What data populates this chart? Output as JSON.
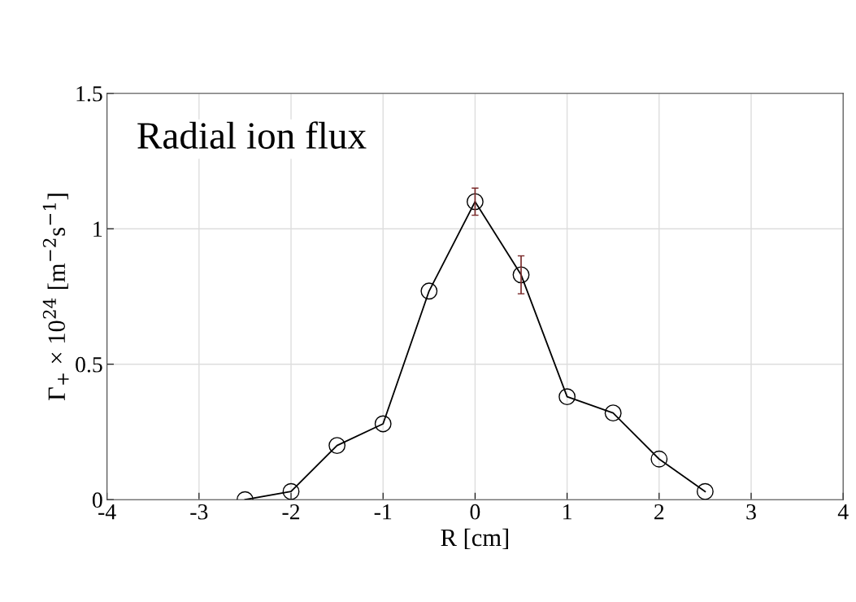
{
  "chart_data": {
    "type": "line",
    "title": "Radial ion flux",
    "xlabel": "R [cm]",
    "ylabel": "Γ$_{+}$ × 10$^{24}$ [m$^{−2}$s$^{−1}$]",
    "x": [
      -2.5,
      -2,
      -1.5,
      -1,
      -0.5,
      0,
      0.5,
      1,
      1.5,
      2,
      2.5
    ],
    "series": [
      {
        "color": "#000000",
        "values": [
          0.0,
          0.03,
          0.2,
          0.28,
          0.77,
          1.1,
          0.83,
          0.38,
          0.32,
          0.15,
          0.03
        ],
        "errors": [
          null,
          null,
          null,
          null,
          null,
          0.05,
          0.07,
          null,
          null,
          null,
          null
        ]
      }
    ],
    "marker": "circle",
    "line_style": "solid",
    "grid": true,
    "xlim": [
      -4,
      4
    ],
    "xticks": [
      -4,
      -3,
      -2,
      -1,
      0,
      1,
      2,
      3,
      4
    ],
    "ylim": [
      0,
      1.5
    ],
    "yticks": [
      0,
      0.5,
      1,
      1.5
    ]
  }
}
